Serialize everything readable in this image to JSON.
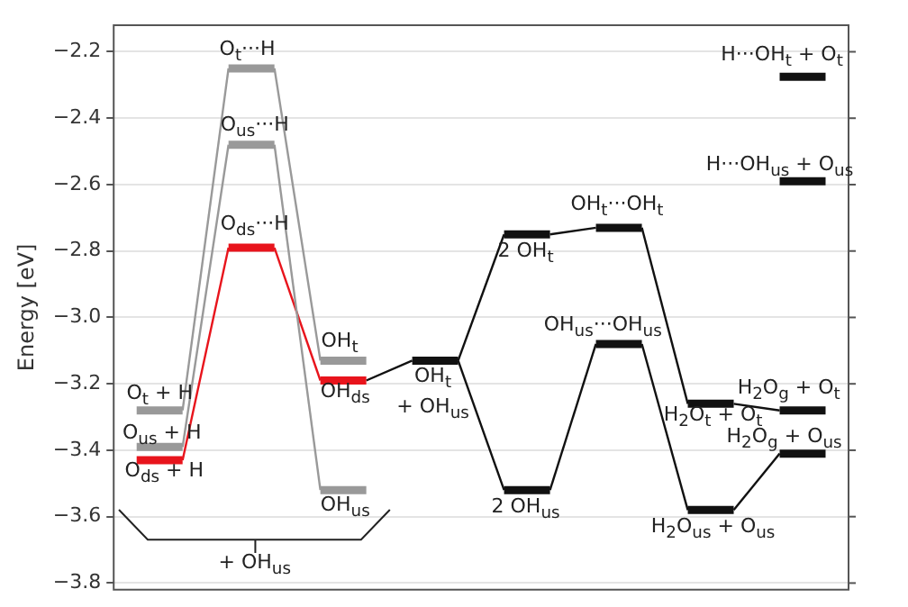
{
  "chart_data": {
    "type": "line",
    "ylabel": "Energy [eV]",
    "categories": [
      null,
      null,
      null,
      null,
      null,
      null,
      null,
      null,
      null,
      null,
      null,
      null,
      null,
      null,
      null,
      null
    ],
    "ylim": [
      -3.82,
      -2.12
    ],
    "yticks": [
      {
        "value": -3.8,
        "label": "−3.8"
      },
      {
        "value": -3.6,
        "label": "−3.6"
      },
      {
        "value": -3.4,
        "label": "−3.4"
      },
      {
        "value": -3.2,
        "label": "−3.2"
      },
      {
        "value": -3.0,
        "label": "−3.0"
      },
      {
        "value": -2.8,
        "label": "−2.8"
      },
      {
        "value": -2.6,
        "label": "−2.6"
      },
      {
        "value": -2.4,
        "label": "−2.4"
      },
      {
        "value": -2.2,
        "label": "−2.2"
      }
    ],
    "grid": "y",
    "tick_labels": "y",
    "legend": false,
    "marker": "none",
    "series": [
      {
        "color": "#999999",
        "values": [
          -3.28,
          -3.28,
          -2.25,
          -2.25,
          -3.13,
          -3.13,
          null,
          null,
          null,
          null,
          null,
          null,
          null,
          null,
          null,
          null
        ]
      },
      {
        "color": "#999999",
        "values": [
          -3.39,
          -3.39,
          -2.48,
          -2.48,
          -3.52,
          -3.52,
          null,
          null,
          null,
          null,
          null,
          null,
          null,
          null,
          null,
          null
        ]
      },
      {
        "color": "#e8141c",
        "values": [
          -3.43,
          -3.43,
          -2.79,
          -2.79,
          -3.19,
          -3.19,
          null,
          null,
          null,
          null,
          null,
          null,
          null,
          null,
          null,
          null
        ]
      },
      {
        "color": "#111111",
        "values": [
          null,
          null,
          null,
          null,
          null,
          null,
          null,
          -3.13,
          -2.75,
          -2.75,
          -2.73,
          -2.73,
          -3.26,
          -3.26,
          -3.28,
          -3.28
        ]
      },
      {
        "color": "#111111",
        "values": [
          null,
          null,
          null,
          null,
          null,
          -3.19,
          -3.13,
          -3.13,
          -3.52,
          -3.52,
          -3.08,
          -3.08,
          -3.58,
          -3.58,
          -3.41,
          -3.41
        ]
      },
      {
        "color": "#111111",
        "values": [
          null,
          null,
          null,
          null,
          null,
          null,
          null,
          null,
          null,
          null,
          null,
          null,
          null,
          null,
          -2.275,
          -2.275
        ]
      },
      {
        "color": "#111111",
        "values": [
          null,
          null,
          null,
          null,
          null,
          null,
          null,
          null,
          null,
          null,
          null,
          null,
          null,
          null,
          -2.59,
          -2.59
        ]
      }
    ],
    "annotations": [
      "O$_{t}$···H",
      "O$_{us}$···H",
      "O$_{ds}$···H",
      "OH$_{t}$",
      "OH$_{ds}$",
      "OH$_{us}$",
      "O$_{t}$ + H",
      "O$_{us}$ + H",
      "O$_{ds}$ + H",
      "+ OH$_{us}$",
      "OH$_{t}$\n+ OH$_{us}$",
      "2 OH$_{t}$",
      "2 OH$_{us}$",
      "OH$_{t}$···OH$_{t}$",
      "OH$_{us}$···OH$_{us}$",
      "H$_{2}$O$_{t}$ + O$_{t}$",
      "H$_{2}$O$_{us}$ + O$_{us}$",
      "H···OH$_{t}$ + O$_{t}$",
      "H···OH$_{us}$ + O$_{us}$",
      "H$_{2}$O$_{g}$ + O$_{t}$",
      "H$_{2}$O$_{g}$ + O$_{us}$"
    ]
  }
}
